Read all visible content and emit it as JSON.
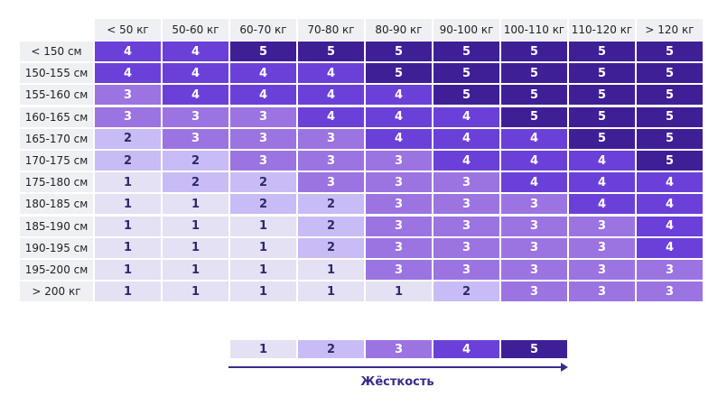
{
  "table": {
    "columns": [
      "< 50 кг",
      "50-60 кг",
      "60-70 кг",
      "70-80 кг",
      "80-90 кг",
      "90-100 кг",
      "100-110 кг",
      "110-120 кг",
      "> 120 кг"
    ],
    "rows": [
      {
        "label": "< 150 см",
        "cells": [
          4,
          4,
          5,
          5,
          5,
          5,
          5,
          5,
          5
        ]
      },
      {
        "label": "150-155 см",
        "cells": [
          4,
          4,
          4,
          4,
          5,
          5,
          5,
          5,
          5
        ]
      },
      {
        "label": "155-160 см",
        "cells": [
          3,
          4,
          4,
          4,
          4,
          5,
          5,
          5,
          5
        ]
      },
      {
        "label": "160-165 см",
        "cells": [
          3,
          3,
          3,
          4,
          4,
          4,
          5,
          5,
          5
        ]
      },
      {
        "label": "165-170 см",
        "cells": [
          2,
          3,
          3,
          3,
          4,
          4,
          4,
          5,
          5
        ]
      },
      {
        "label": "170-175 см",
        "cells": [
          2,
          2,
          3,
          3,
          3,
          4,
          4,
          4,
          5
        ]
      },
      {
        "label": "175-180 см",
        "cells": [
          1,
          2,
          2,
          3,
          3,
          3,
          4,
          4,
          4
        ]
      },
      {
        "label": "180-185 см",
        "cells": [
          1,
          1,
          2,
          2,
          3,
          3,
          3,
          4,
          4
        ]
      },
      {
        "label": "185-190 см",
        "cells": [
          1,
          1,
          1,
          2,
          3,
          3,
          3,
          3,
          4
        ]
      },
      {
        "label": "190-195 см",
        "cells": [
          1,
          1,
          1,
          2,
          3,
          3,
          3,
          3,
          4
        ]
      },
      {
        "label": "195-200 см",
        "cells": [
          1,
          1,
          1,
          1,
          3,
          3,
          3,
          3,
          3
        ]
      },
      {
        "label": "> 200 кг",
        "cells": [
          1,
          1,
          1,
          1,
          1,
          2,
          3,
          3,
          3
        ]
      }
    ]
  },
  "legend": {
    "title": "Жёсткость",
    "items": [
      {
        "value": 1,
        "color": "#e3e1f3",
        "text_color": "#2b2a6b"
      },
      {
        "value": 2,
        "color": "#c9bbf6",
        "text_color": "#2b2a6b"
      },
      {
        "value": 3,
        "color": "#9b74e2",
        "text_color": "#ffffff"
      },
      {
        "value": 4,
        "color": "#6b40d9",
        "text_color": "#ffffff"
      },
      {
        "value": 5,
        "color": "#3f1f96",
        "text_color": "#ffffff"
      }
    ]
  }
}
